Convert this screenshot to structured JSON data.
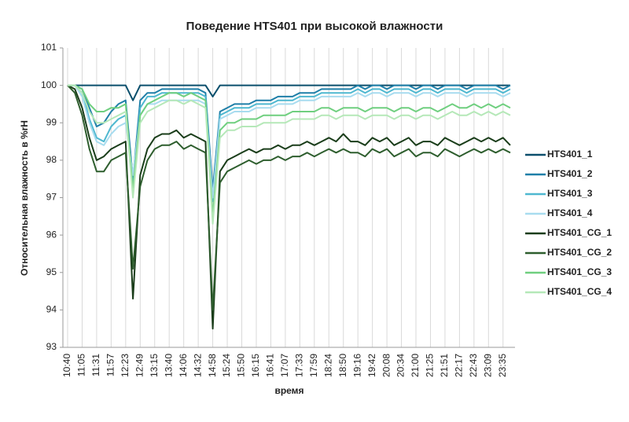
{
  "chart_data": {
    "type": "line",
    "title": "Поведение HTS401 при высокой влажности",
    "x_label": "время",
    "y_label": "Относительная влажность в %rH",
    "categories": [
      "10:40",
      null,
      "11:05",
      null,
      "11:31",
      null,
      "11:57",
      null,
      "12:23",
      null,
      "12:49",
      null,
      "13:15",
      null,
      "13:40",
      null,
      "14:06",
      null,
      "14:32",
      null,
      "14:58",
      null,
      "15:24",
      null,
      "15:50",
      null,
      "16:15",
      null,
      "16:41",
      null,
      "17:07",
      null,
      "17:33",
      null,
      "17:59",
      null,
      "18:24",
      null,
      "18:50",
      null,
      "19:16",
      null,
      "19:42",
      null,
      "20:08",
      null,
      "20:34",
      null,
      "21:00",
      null,
      "21:25",
      null,
      "21:51",
      null,
      "22:17",
      null,
      "22:43",
      null,
      "23:09",
      null,
      "23:35",
      null
    ],
    "ylim": [
      93,
      101
    ],
    "yticks": [
      93,
      94,
      95,
      96,
      97,
      98,
      99,
      100,
      101
    ],
    "grid": "x",
    "legend": "right",
    "series": [
      {
        "name": "HTS401_1",
        "color": "#0b4f6c",
        "values": [
          100,
          100,
          100,
          100,
          100,
          100,
          100,
          100,
          100,
          99.6,
          100,
          100,
          100,
          100,
          100,
          100,
          100,
          100,
          100,
          100,
          99.7,
          100,
          100,
          100,
          100,
          100,
          100,
          100,
          100,
          100,
          100,
          100,
          100,
          100,
          100,
          100,
          100,
          100,
          100,
          100,
          100,
          100,
          100,
          100,
          100,
          100,
          100,
          100,
          100,
          100,
          100,
          100,
          100,
          100,
          100,
          100,
          100,
          100,
          100,
          100,
          100,
          100
        ]
      },
      {
        "name": "HTS401_2",
        "color": "#1f7fa8",
        "values": [
          100,
          100,
          99.9,
          99.4,
          98.9,
          99.0,
          99.3,
          99.5,
          99.6,
          97.5,
          99.6,
          99.8,
          99.8,
          99.9,
          99.9,
          99.9,
          99.9,
          99.9,
          99.9,
          99.8,
          97.2,
          99.3,
          99.4,
          99.5,
          99.5,
          99.5,
          99.6,
          99.6,
          99.6,
          99.7,
          99.7,
          99.7,
          99.8,
          99.8,
          99.8,
          99.9,
          99.9,
          99.9,
          99.9,
          99.9,
          100,
          99.9,
          100,
          100,
          99.9,
          100,
          100,
          100,
          99.9,
          100,
          100,
          99.9,
          100,
          100,
          100,
          99.9,
          100,
          100,
          100,
          100,
          99.9,
          100
        ]
      },
      {
        "name": "HTS401_3",
        "color": "#4fb8d0",
        "values": [
          100,
          100,
          99.8,
          99.1,
          98.6,
          98.5,
          98.9,
          99.1,
          99.2,
          97.3,
          99.4,
          99.7,
          99.7,
          99.8,
          99.8,
          99.8,
          99.8,
          99.8,
          99.8,
          99.7,
          96.9,
          99.2,
          99.3,
          99.4,
          99.4,
          99.4,
          99.5,
          99.5,
          99.5,
          99.6,
          99.6,
          99.6,
          99.7,
          99.7,
          99.7,
          99.8,
          99.8,
          99.8,
          99.8,
          99.8,
          99.9,
          99.8,
          99.9,
          99.9,
          99.8,
          99.9,
          99.9,
          99.9,
          99.8,
          99.9,
          99.9,
          99.8,
          99.9,
          99.9,
          99.9,
          99.8,
          99.9,
          99.9,
          99.9,
          99.9,
          99.8,
          99.9
        ]
      },
      {
        "name": "HTS401_4",
        "color": "#a8dcef",
        "values": [
          100,
          100,
          99.7,
          99.0,
          98.5,
          98.4,
          98.7,
          98.9,
          99.0,
          97.6,
          99.2,
          99.5,
          99.5,
          99.6,
          99.6,
          99.6,
          99.6,
          99.6,
          99.6,
          99.5,
          97.0,
          99.1,
          99.2,
          99.3,
          99.3,
          99.3,
          99.4,
          99.4,
          99.4,
          99.5,
          99.5,
          99.5,
          99.6,
          99.6,
          99.6,
          99.7,
          99.7,
          99.7,
          99.7,
          99.7,
          99.8,
          99.7,
          99.8,
          99.8,
          99.7,
          99.8,
          99.8,
          99.8,
          99.7,
          99.8,
          99.8,
          99.7,
          99.8,
          99.8,
          99.8,
          99.7,
          99.8,
          99.8,
          99.8,
          99.8,
          99.7,
          99.8
        ]
      },
      {
        "name": "HTS401_CG_1",
        "color": "#1a3d1a",
        "values": [
          100,
          99.9,
          99.4,
          98.6,
          98.0,
          98.1,
          98.3,
          98.4,
          98.5,
          94.3,
          97.6,
          98.3,
          98.6,
          98.7,
          98.7,
          98.8,
          98.6,
          98.7,
          98.6,
          98.5,
          93.5,
          97.7,
          98.0,
          98.1,
          98.2,
          98.3,
          98.2,
          98.3,
          98.3,
          98.4,
          98.3,
          98.4,
          98.4,
          98.5,
          98.4,
          98.5,
          98.6,
          98.5,
          98.7,
          98.5,
          98.5,
          98.4,
          98.6,
          98.5,
          98.6,
          98.4,
          98.5,
          98.6,
          98.4,
          98.5,
          98.5,
          98.4,
          98.6,
          98.5,
          98.4,
          98.5,
          98.6,
          98.5,
          98.6,
          98.5,
          98.6,
          98.4
        ]
      },
      {
        "name": "HTS401_CG_2",
        "color": "#2e5e2e",
        "values": [
          100,
          99.8,
          99.2,
          98.3,
          97.7,
          97.7,
          98.0,
          98.1,
          98.2,
          95.1,
          97.3,
          98.0,
          98.3,
          98.4,
          98.4,
          98.5,
          98.3,
          98.4,
          98.3,
          98.2,
          94.0,
          97.4,
          97.7,
          97.8,
          97.9,
          98.0,
          97.9,
          98.0,
          98.0,
          98.1,
          98.0,
          98.1,
          98.1,
          98.2,
          98.1,
          98.2,
          98.3,
          98.2,
          98.3,
          98.2,
          98.2,
          98.1,
          98.3,
          98.2,
          98.3,
          98.1,
          98.2,
          98.3,
          98.1,
          98.2,
          98.2,
          98.1,
          98.3,
          98.2,
          98.1,
          98.2,
          98.3,
          98.2,
          98.3,
          98.2,
          98.3,
          98.2
        ]
      },
      {
        "name": "HTS401_CG_3",
        "color": "#6fcf7f",
        "values": [
          100,
          100,
          99.9,
          99.5,
          99.3,
          99.3,
          99.4,
          99.4,
          99.5,
          97.2,
          99.2,
          99.5,
          99.6,
          99.7,
          99.8,
          99.8,
          99.7,
          99.8,
          99.7,
          99.6,
          96.5,
          98.8,
          99.0,
          99.0,
          99.1,
          99.1,
          99.1,
          99.2,
          99.2,
          99.2,
          99.2,
          99.3,
          99.3,
          99.3,
          99.3,
          99.4,
          99.4,
          99.3,
          99.4,
          99.4,
          99.4,
          99.3,
          99.4,
          99.4,
          99.4,
          99.3,
          99.4,
          99.4,
          99.3,
          99.4,
          99.4,
          99.3,
          99.4,
          99.5,
          99.4,
          99.4,
          99.5,
          99.4,
          99.5,
          99.4,
          99.5,
          99.4
        ]
      },
      {
        "name": "HTS401_CG_4",
        "color": "#b5e8b8",
        "values": [
          100,
          100,
          99.8,
          99.3,
          99.0,
          99.0,
          99.1,
          99.2,
          99.3,
          97.0,
          99.0,
          99.3,
          99.4,
          99.5,
          99.6,
          99.6,
          99.5,
          99.6,
          99.5,
          99.4,
          96.3,
          98.6,
          98.8,
          98.8,
          98.9,
          98.9,
          98.9,
          99.0,
          99.0,
          99.0,
          99.0,
          99.1,
          99.1,
          99.1,
          99.1,
          99.2,
          99.2,
          99.1,
          99.2,
          99.2,
          99.2,
          99.1,
          99.2,
          99.2,
          99.2,
          99.1,
          99.2,
          99.2,
          99.1,
          99.2,
          99.2,
          99.1,
          99.2,
          99.3,
          99.2,
          99.2,
          99.3,
          99.2,
          99.3,
          99.2,
          99.3,
          99.2
        ]
      }
    ]
  }
}
